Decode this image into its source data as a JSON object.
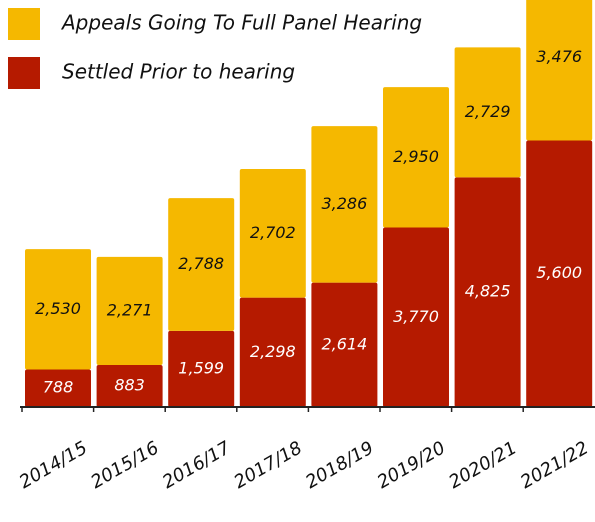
{
  "chart_data": {
    "type": "bar",
    "stacked": true,
    "categories": [
      "2014/15",
      "2015/16",
      "2016/17",
      "2017/18",
      "2018/19",
      "2019/20",
      "2020/21",
      "2021/22"
    ],
    "series": [
      {
        "name": "Appeals Going To Full Panel Hearing",
        "color": "#f5b800",
        "values": [
          2530,
          2271,
          2788,
          2702,
          3286,
          2950,
          2729,
          3476
        ],
        "value_labels": [
          "2,530",
          "2,271",
          "2,788",
          "2,702",
          "3,286",
          "2,950",
          "2,729",
          "3,476"
        ]
      },
      {
        "name": "Settled Prior to hearing",
        "color": "#b51a00",
        "values": [
          788,
          883,
          1599,
          2298,
          2614,
          3770,
          4825,
          5600
        ],
        "value_labels": [
          "788",
          "883",
          "1,599",
          "2,298",
          "2,614",
          "3,770",
          "4,825",
          "5,600"
        ]
      }
    ]
  }
}
